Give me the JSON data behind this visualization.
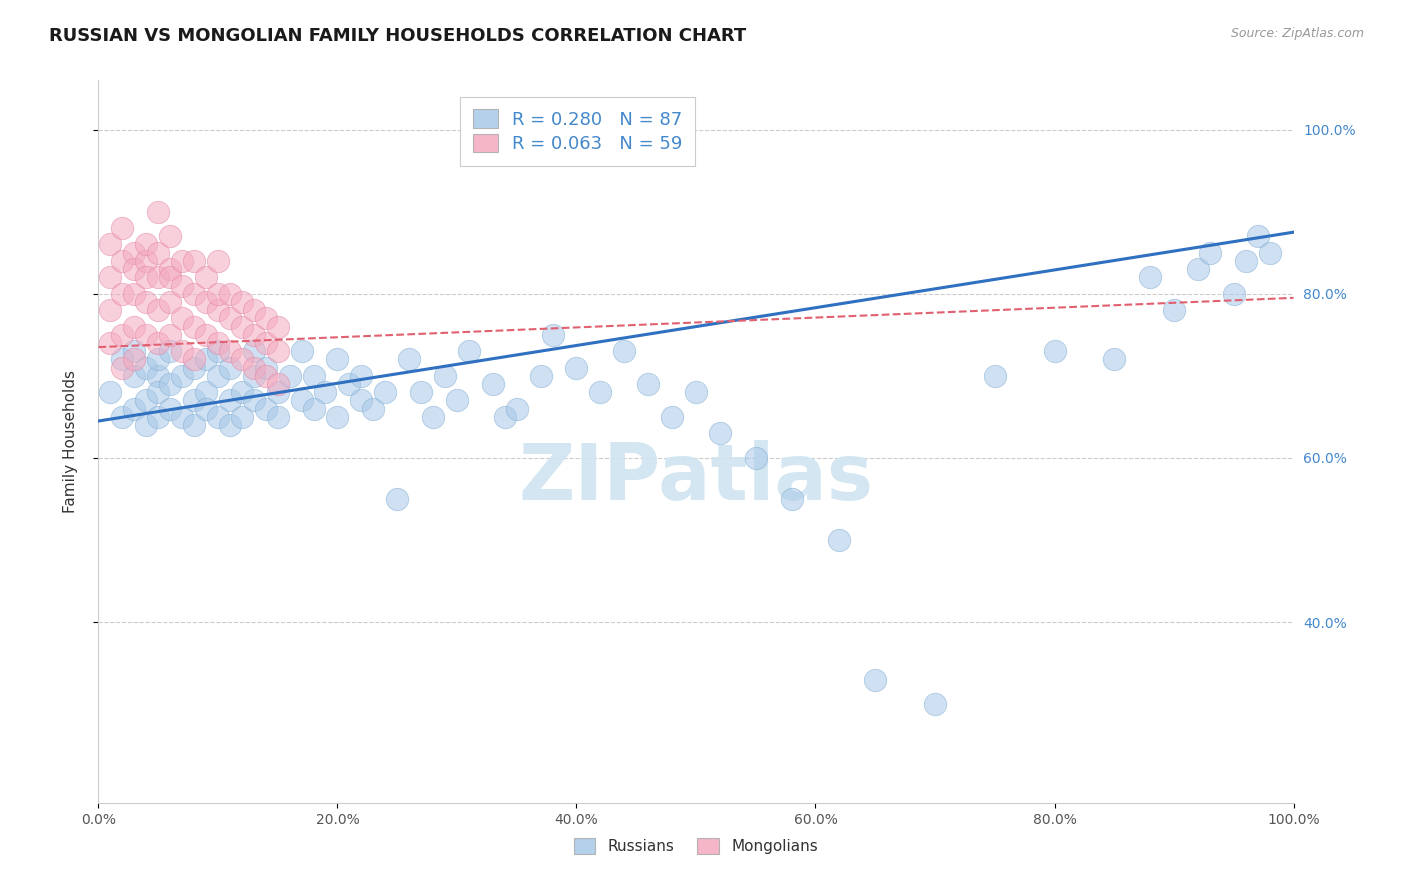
{
  "title": "RUSSIAN VS MONGOLIAN FAMILY HOUSEHOLDS CORRELATION CHART",
  "source_text": "Source: ZipAtlas.com",
  "ylabel": "Family Households",
  "xmin": 0.0,
  "xmax": 1.0,
  "ymin": 0.18,
  "ymax": 1.06,
  "russian_R": 0.28,
  "russian_N": 87,
  "mongolian_R": 0.063,
  "mongolian_N": 59,
  "russian_color": "#a8c8e8",
  "russian_edge_color": "#7aaad0",
  "mongolian_color": "#f4aabf",
  "mongolian_edge_color": "#e080a0",
  "russian_line_color": "#3070c0",
  "mongolian_line_color": "#e06070",
  "legend_text_color": "#4488cc",
  "background_color": "#ffffff",
  "grid_color": "#cccccc",
  "title_fontsize": 13,
  "axis_label_fontsize": 11,
  "watermark_color": "#d0e4f0",
  "right_axis_color": "#4488cc",
  "y_ticks": [
    0.4,
    0.6,
    0.8,
    1.0
  ],
  "x_ticks": [
    0.0,
    0.2,
    0.4,
    0.6,
    0.8,
    1.0
  ],
  "rus_line_x0": 0.0,
  "rus_line_y0": 0.645,
  "rus_line_x1": 1.0,
  "rus_line_y1": 0.875,
  "mon_line_x0": 0.0,
  "mon_line_y0": 0.735,
  "mon_line_x1": 1.0,
  "mon_line_y1": 0.795,
  "russian_x": [
    0.01,
    0.02,
    0.02,
    0.03,
    0.03,
    0.03,
    0.04,
    0.04,
    0.04,
    0.05,
    0.05,
    0.05,
    0.05,
    0.06,
    0.06,
    0.06,
    0.07,
    0.07,
    0.08,
    0.08,
    0.08,
    0.09,
    0.09,
    0.09,
    0.1,
    0.1,
    0.1,
    0.11,
    0.11,
    0.11,
    0.12,
    0.12,
    0.13,
    0.13,
    0.13,
    0.14,
    0.14,
    0.15,
    0.15,
    0.16,
    0.17,
    0.17,
    0.18,
    0.18,
    0.19,
    0.2,
    0.2,
    0.21,
    0.22,
    0.22,
    0.23,
    0.24,
    0.25,
    0.26,
    0.27,
    0.28,
    0.29,
    0.3,
    0.31,
    0.33,
    0.34,
    0.35,
    0.37,
    0.38,
    0.4,
    0.42,
    0.44,
    0.46,
    0.48,
    0.5,
    0.52,
    0.55,
    0.58,
    0.62,
    0.65,
    0.7,
    0.75,
    0.8,
    0.85,
    0.88,
    0.9,
    0.92,
    0.93,
    0.95,
    0.96,
    0.97,
    0.98
  ],
  "russian_y": [
    0.68,
    0.72,
    0.65,
    0.7,
    0.66,
    0.73,
    0.67,
    0.71,
    0.64,
    0.7,
    0.65,
    0.68,
    0.72,
    0.66,
    0.69,
    0.73,
    0.65,
    0.7,
    0.67,
    0.71,
    0.64,
    0.68,
    0.72,
    0.66,
    0.65,
    0.7,
    0.73,
    0.67,
    0.71,
    0.64,
    0.68,
    0.65,
    0.7,
    0.73,
    0.67,
    0.66,
    0.71,
    0.68,
    0.65,
    0.7,
    0.73,
    0.67,
    0.66,
    0.7,
    0.68,
    0.72,
    0.65,
    0.69,
    0.67,
    0.7,
    0.66,
    0.68,
    0.55,
    0.72,
    0.68,
    0.65,
    0.7,
    0.67,
    0.73,
    0.69,
    0.65,
    0.66,
    0.7,
    0.75,
    0.71,
    0.68,
    0.73,
    0.69,
    0.65,
    0.68,
    0.63,
    0.6,
    0.55,
    0.5,
    0.33,
    0.3,
    0.7,
    0.73,
    0.72,
    0.82,
    0.78,
    0.83,
    0.85,
    0.8,
    0.84,
    0.87,
    0.85
  ],
  "mongolian_x": [
    0.01,
    0.01,
    0.01,
    0.01,
    0.02,
    0.02,
    0.02,
    0.02,
    0.02,
    0.03,
    0.03,
    0.03,
    0.03,
    0.03,
    0.04,
    0.04,
    0.04,
    0.04,
    0.04,
    0.05,
    0.05,
    0.05,
    0.05,
    0.05,
    0.06,
    0.06,
    0.06,
    0.06,
    0.06,
    0.07,
    0.07,
    0.07,
    0.07,
    0.08,
    0.08,
    0.08,
    0.08,
    0.09,
    0.09,
    0.09,
    0.1,
    0.1,
    0.1,
    0.1,
    0.11,
    0.11,
    0.11,
    0.12,
    0.12,
    0.12,
    0.13,
    0.13,
    0.13,
    0.14,
    0.14,
    0.14,
    0.15,
    0.15,
    0.15
  ],
  "mongolian_y": [
    0.86,
    0.82,
    0.78,
    0.74,
    0.84,
    0.88,
    0.8,
    0.75,
    0.71,
    0.85,
    0.8,
    0.76,
    0.72,
    0.83,
    0.84,
    0.79,
    0.75,
    0.82,
    0.86,
    0.82,
    0.78,
    0.74,
    0.85,
    0.9,
    0.83,
    0.79,
    0.75,
    0.82,
    0.87,
    0.81,
    0.77,
    0.73,
    0.84,
    0.8,
    0.76,
    0.72,
    0.84,
    0.79,
    0.75,
    0.82,
    0.78,
    0.74,
    0.8,
    0.84,
    0.77,
    0.73,
    0.8,
    0.76,
    0.72,
    0.79,
    0.75,
    0.71,
    0.78,
    0.74,
    0.7,
    0.77,
    0.73,
    0.69,
    0.76
  ]
}
